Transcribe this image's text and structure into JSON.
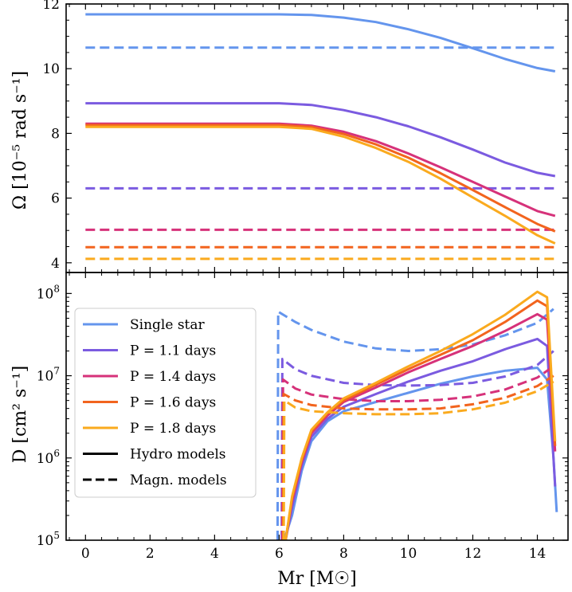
{
  "chart_data": [
    {
      "type": "line",
      "panel": "top",
      "ylabel": "Ω [10⁻⁵ rad s⁻¹]",
      "xlim": [
        -0.6,
        14.95
      ],
      "ylim": [
        3.7,
        12.0
      ],
      "yticks": [
        4,
        6,
        8,
        10,
        12
      ],
      "grid": false,
      "series": [
        {
          "name": "Single star",
          "style": "solid",
          "color": "#6495ED",
          "points": [
            [
              0,
              11.68
            ],
            [
              6,
              11.68
            ],
            [
              7,
              11.66
            ],
            [
              8,
              11.58
            ],
            [
              9,
              11.44
            ],
            [
              10,
              11.22
            ],
            [
              11,
              10.95
            ],
            [
              12,
              10.63
            ],
            [
              13,
              10.3
            ],
            [
              14,
              10.02
            ],
            [
              14.55,
              9.92
            ]
          ]
        },
        {
          "name": "Single star",
          "style": "dashed",
          "color": "#6495ED",
          "points": [
            [
              0,
              10.65
            ],
            [
              14.55,
              10.65
            ]
          ]
        },
        {
          "name": "P = 1.1 days",
          "style": "solid",
          "color": "#7B5BE0",
          "points": [
            [
              0,
              8.93
            ],
            [
              6,
              8.93
            ],
            [
              7,
              8.88
            ],
            [
              8,
              8.72
            ],
            [
              9,
              8.5
            ],
            [
              10,
              8.22
            ],
            [
              11,
              7.88
            ],
            [
              12,
              7.5
            ],
            [
              13,
              7.1
            ],
            [
              14,
              6.78
            ],
            [
              14.55,
              6.68
            ]
          ]
        },
        {
          "name": "P = 1.1 days",
          "style": "dashed",
          "color": "#7B5BE0",
          "points": [
            [
              0,
              6.3
            ],
            [
              14.55,
              6.3
            ]
          ]
        },
        {
          "name": "P = 1.4 days",
          "style": "solid",
          "color": "#D6327A",
          "points": [
            [
              0,
              8.3
            ],
            [
              6,
              8.3
            ],
            [
              7,
              8.24
            ],
            [
              8,
              8.05
            ],
            [
              9,
              7.76
            ],
            [
              10,
              7.38
            ],
            [
              11,
              6.95
            ],
            [
              12,
              6.5
            ],
            [
              13,
              6.05
            ],
            [
              14,
              5.6
            ],
            [
              14.55,
              5.45
            ]
          ]
        },
        {
          "name": "P = 1.4 days",
          "style": "dashed",
          "color": "#D6327A",
          "points": [
            [
              0,
              5.02
            ],
            [
              14.55,
              5.02
            ]
          ]
        },
        {
          "name": "P = 1.6 days",
          "style": "solid",
          "color": "#F2641E",
          "points": [
            [
              0,
              8.26
            ],
            [
              6,
              8.26
            ],
            [
              7,
              8.2
            ],
            [
              8,
              7.98
            ],
            [
              9,
              7.66
            ],
            [
              10,
              7.25
            ],
            [
              11,
              6.77
            ],
            [
              12,
              6.25
            ],
            [
              13,
              5.72
            ],
            [
              14,
              5.2
            ],
            [
              14.55,
              4.97
            ]
          ]
        },
        {
          "name": "P = 1.6 days",
          "style": "dashed",
          "color": "#F2641E",
          "points": [
            [
              0,
              4.48
            ],
            [
              14.55,
              4.48
            ]
          ]
        },
        {
          "name": "P = 1.8 days",
          "style": "solid",
          "color": "#FAAA1E",
          "points": [
            [
              0,
              8.2
            ],
            [
              6,
              8.2
            ],
            [
              7,
              8.14
            ],
            [
              8,
              7.9
            ],
            [
              9,
              7.55
            ],
            [
              10,
              7.12
            ],
            [
              11,
              6.6
            ],
            [
              12,
              6.02
            ],
            [
              13,
              5.45
            ],
            [
              14,
              4.85
            ],
            [
              14.55,
              4.6
            ]
          ]
        },
        {
          "name": "P = 1.8 days",
          "style": "dashed",
          "color": "#FAAA1E",
          "points": [
            [
              0,
              4.12
            ],
            [
              14.55,
              4.12
            ]
          ]
        }
      ]
    },
    {
      "type": "line",
      "panel": "bottom",
      "ylabel": "D [cm² s⁻¹]",
      "xlabel": "Mr [M☉]",
      "xlim": [
        -0.6,
        14.95
      ],
      "ylim": [
        100000,
        180000000
      ],
      "yscale": "log",
      "xticks": [
        0,
        2,
        4,
        6,
        8,
        10,
        12,
        14
      ],
      "yticks": [
        100000,
        1000000,
        10000000,
        100000000
      ],
      "grid": false,
      "legend_position": "left",
      "series": [
        {
          "name": "Single star",
          "style": "solid",
          "color": "#6495ED",
          "points": [
            [
              6.15,
              100000
            ],
            [
              6.4,
              200000
            ],
            [
              6.7,
              700000
            ],
            [
              7,
              1600000
            ],
            [
              7.5,
              2800000
            ],
            [
              8,
              3700000
            ],
            [
              9,
              4800000
            ],
            [
              10,
              6200000
            ],
            [
              11,
              8000000
            ],
            [
              12,
              9800000
            ],
            [
              13,
              11500000
            ],
            [
              14,
              12500000
            ],
            [
              14.3,
              9000000
            ],
            [
              14.5,
              1000000
            ],
            [
              14.6,
              220000
            ]
          ]
        },
        {
          "name": "Single star",
          "style": "dashed",
          "color": "#6495ED",
          "points": [
            [
              5.95,
              100000
            ],
            [
              5.97,
              60000000
            ],
            [
              6.5,
              45000000
            ],
            [
              7,
              36000000
            ],
            [
              8,
              26000000
            ],
            [
              9,
              21500000
            ],
            [
              10,
              20000000
            ],
            [
              11,
              21000000
            ],
            [
              12,
              24000000
            ],
            [
              13,
              31000000
            ],
            [
              14,
              44000000
            ],
            [
              14.5,
              65000000
            ]
          ]
        },
        {
          "name": "P = 1.1 days",
          "style": "solid",
          "color": "#7B5BE0",
          "points": [
            [
              6.2,
              100000
            ],
            [
              6.4,
              250000
            ],
            [
              6.7,
              800000
            ],
            [
              7,
              1800000
            ],
            [
              7.5,
              3000000
            ],
            [
              8,
              4200000
            ],
            [
              9,
              6000000
            ],
            [
              10,
              8500000
            ],
            [
              11,
              11500000
            ],
            [
              12,
              15000000
            ],
            [
              13,
              21000000
            ],
            [
              14,
              28000000
            ],
            [
              14.3,
              23000000
            ],
            [
              14.55,
              450000
            ]
          ]
        },
        {
          "name": "P = 1.1 days",
          "style": "dashed",
          "color": "#7B5BE0",
          "points": [
            [
              6.08,
              100000
            ],
            [
              6.1,
              16000000
            ],
            [
              6.5,
              12000000
            ],
            [
              7,
              10000000
            ],
            [
              8,
              8200000
            ],
            [
              9,
              7700000
            ],
            [
              10,
              7600000
            ],
            [
              11,
              7700000
            ],
            [
              12,
              8200000
            ],
            [
              13,
              9800000
            ],
            [
              14,
              13500000
            ],
            [
              14.5,
              20000000
            ]
          ]
        },
        {
          "name": "P = 1.4 days",
          "style": "solid",
          "color": "#D6327A",
          "points": [
            [
              6.2,
              100000
            ],
            [
              6.4,
              300000
            ],
            [
              6.7,
              900000
            ],
            [
              7,
              2000000
            ],
            [
              7.5,
              3300000
            ],
            [
              8,
              4800000
            ],
            [
              9,
              7200000
            ],
            [
              10,
              11000000
            ],
            [
              11,
              16000000
            ],
            [
              12,
              23000000
            ],
            [
              13,
              35000000
            ],
            [
              14,
              56000000
            ],
            [
              14.3,
              48000000
            ],
            [
              14.55,
              1200000
            ]
          ]
        },
        {
          "name": "P = 1.4 days",
          "style": "dashed",
          "color": "#D6327A",
          "points": [
            [
              6.1,
              100000
            ],
            [
              6.12,
              9000000
            ],
            [
              6.5,
              7000000
            ],
            [
              7,
              5900000
            ],
            [
              8,
              5200000
            ],
            [
              9,
              4900000
            ],
            [
              10,
              4900000
            ],
            [
              11,
              5100000
            ],
            [
              12,
              5600000
            ],
            [
              13,
              6800000
            ],
            [
              14,
              9500000
            ],
            [
              14.5,
              13000000
            ]
          ]
        },
        {
          "name": "P = 1.6 days",
          "style": "solid",
          "color": "#F2641E",
          "points": [
            [
              6.2,
              100000
            ],
            [
              6.4,
              320000
            ],
            [
              6.7,
              950000
            ],
            [
              7,
              2100000
            ],
            [
              7.5,
              3500000
            ],
            [
              8,
              5000000
            ],
            [
              9,
              7800000
            ],
            [
              10,
              12000000
            ],
            [
              11,
              18000000
            ],
            [
              12,
              27000000
            ],
            [
              13,
              45000000
            ],
            [
              14,
              82000000
            ],
            [
              14.3,
              70000000
            ],
            [
              14.55,
              1400000
            ]
          ]
        },
        {
          "name": "P = 1.6 days",
          "style": "dashed",
          "color": "#F2641E",
          "points": [
            [
              6.12,
              100000
            ],
            [
              6.14,
              6000000
            ],
            [
              6.5,
              5000000
            ],
            [
              7,
              4400000
            ],
            [
              8,
              4000000
            ],
            [
              9,
              3900000
            ],
            [
              10,
              3900000
            ],
            [
              11,
              4000000
            ],
            [
              12,
              4500000
            ],
            [
              13,
              5400000
            ],
            [
              14,
              7500000
            ],
            [
              14.5,
              10000000
            ]
          ]
        },
        {
          "name": "P = 1.8 days",
          "style": "solid",
          "color": "#FAAA1E",
          "points": [
            [
              6.2,
              100000
            ],
            [
              6.4,
              340000
            ],
            [
              6.7,
              1000000
            ],
            [
              7,
              2200000
            ],
            [
              7.5,
              3600000
            ],
            [
              8,
              5300000
            ],
            [
              9,
              8200000
            ],
            [
              10,
              13000000
            ],
            [
              11,
              20000000
            ],
            [
              12,
              32000000
            ],
            [
              13,
              55000000
            ],
            [
              14,
              105000000
            ],
            [
              14.3,
              90000000
            ],
            [
              14.55,
              1600000
            ]
          ]
        },
        {
          "name": "P = 1.8 days",
          "style": "dashed",
          "color": "#FAAA1E",
          "points": [
            [
              6.14,
              100000
            ],
            [
              6.16,
              5000000
            ],
            [
              6.5,
              4100000
            ],
            [
              7,
              3700000
            ],
            [
              8,
              3500000
            ],
            [
              9,
              3400000
            ],
            [
              10,
              3400000
            ],
            [
              11,
              3500000
            ],
            [
              12,
              3900000
            ],
            [
              13,
              4700000
            ],
            [
              14,
              6500000
            ],
            [
              14.5,
              8500000
            ]
          ]
        }
      ],
      "legend": [
        {
          "label": "Single star",
          "style": "solid",
          "color": "#6495ED"
        },
        {
          "label": "P = 1.1 days",
          "style": "solid",
          "color": "#7B5BE0"
        },
        {
          "label": "P = 1.4 days",
          "style": "solid",
          "color": "#D6327A"
        },
        {
          "label": "P = 1.6 days",
          "style": "solid",
          "color": "#F2641E"
        },
        {
          "label": "P = 1.8 days",
          "style": "solid",
          "color": "#FAAA1E"
        },
        {
          "label": "Hydro models",
          "style": "solid",
          "color": "#000000"
        },
        {
          "label": "Magn. models",
          "style": "dashed",
          "color": "#000000"
        }
      ]
    }
  ]
}
